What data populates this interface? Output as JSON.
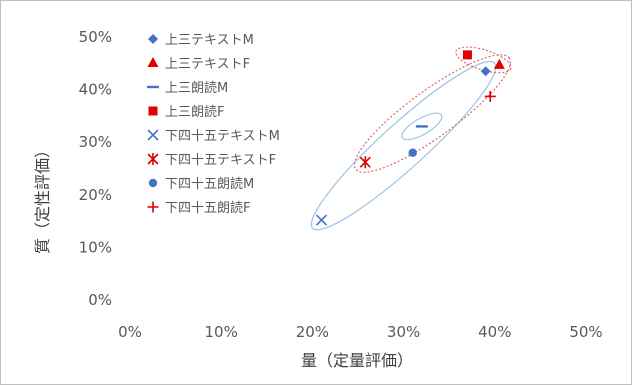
{
  "chart_data": {
    "type": "scatter",
    "title": "",
    "xlabel": "量（定量評価）",
    "ylabel": "質（定性評価）",
    "xlim": [
      0,
      0.5
    ],
    "ylim": [
      0,
      0.5
    ],
    "x_ticks": [
      "0%",
      "10%",
      "20%",
      "30%",
      "40%",
      "50%"
    ],
    "y_ticks": [
      "0%",
      "10%",
      "20%",
      "30%",
      "40%",
      "50%"
    ],
    "grid": false,
    "legend_position": "right-of-plot (upper)",
    "series": [
      {
        "name": "上三テキストM",
        "marker": "diamond",
        "color": "#4472c4",
        "points": [
          [
            0.39,
            0.435
          ]
        ]
      },
      {
        "name": "上三テキストF",
        "marker": "triangle",
        "color": "#e00000",
        "points": [
          [
            0.405,
            0.447
          ]
        ]
      },
      {
        "name": "上三朗読M",
        "marker": "dash",
        "color": "#4472c4",
        "points": [
          [
            0.32,
            0.33
          ]
        ]
      },
      {
        "name": "上三朗読F",
        "marker": "square",
        "color": "#e00000",
        "points": [
          [
            0.37,
            0.466
          ]
        ]
      },
      {
        "name": "下四十五テキストM",
        "marker": "x",
        "color": "#4472c4",
        "points": [
          [
            0.21,
            0.152
          ]
        ]
      },
      {
        "name": "下四十五テキストF",
        "marker": "asterisk",
        "color": "#e00000",
        "points": [
          [
            0.258,
            0.262
          ]
        ]
      },
      {
        "name": "下四十五朗読M",
        "marker": "circle",
        "color": "#4472c4",
        "points": [
          [
            0.31,
            0.28
          ]
        ]
      },
      {
        "name": "下四十五朗読F",
        "marker": "plus",
        "color": "#e00000",
        "points": [
          [
            0.395,
            0.387
          ]
        ]
      }
    ],
    "ellipses": [
      {
        "group": "M",
        "style": "solid",
        "color": "#9dc3e6",
        "through": [
          [
            0.21,
            0.152
          ],
          [
            0.39,
            0.435
          ]
        ]
      },
      {
        "group": "F",
        "style": "dotted",
        "color": "#e06666",
        "through": [
          [
            0.258,
            0.262
          ],
          [
            0.405,
            0.447
          ]
        ]
      },
      {
        "group": "上三",
        "style": "dotted",
        "color": "#e06666",
        "through": [
          [
            0.37,
            0.466
          ],
          [
            0.405,
            0.447
          ]
        ]
      },
      {
        "group": "上三朗読M",
        "style": "solid",
        "color": "#9dc3e6",
        "through": [
          [
            0.31,
            0.32
          ],
          [
            0.33,
            0.34
          ]
        ]
      }
    ]
  }
}
